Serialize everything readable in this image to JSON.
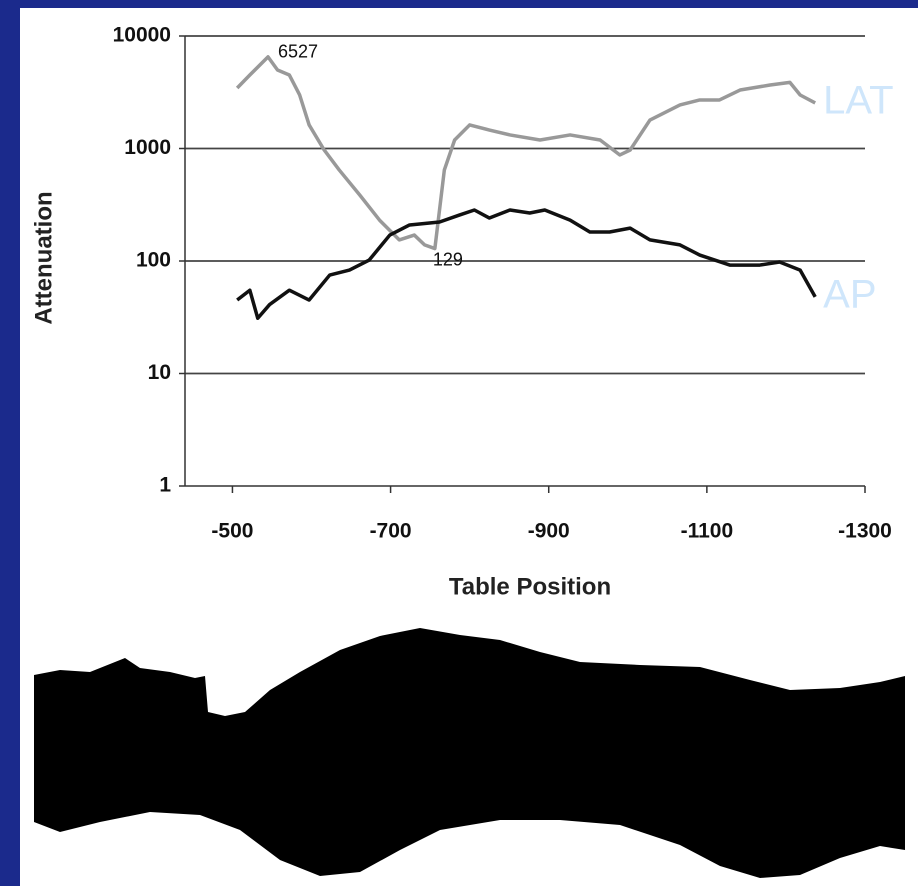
{
  "chart_data": {
    "type": "line",
    "x_label": "Table Position",
    "y_label": "Attenuation",
    "log_y": true,
    "grid": true,
    "xlim": [
      -440,
      -1300
    ],
    "xticks": [
      -500,
      -700,
      -900,
      -1100,
      -1300
    ],
    "ylim": [
      1,
      10000
    ],
    "yticks": [
      1,
      10,
      100,
      1000,
      10000
    ],
    "series": [
      {
        "name": "LAT",
        "color": "#999999",
        "x": [
          -506,
          -522,
          -545,
          -557,
          -572,
          -585,
          -597,
          -616,
          -635,
          -661,
          -686,
          -711,
          -730,
          -743,
          -756,
          -768,
          -781,
          -800,
          -825,
          -851,
          -889,
          -927,
          -965,
          -990,
          -1003,
          -1028,
          -1066,
          -1091,
          -1116,
          -1142,
          -1180,
          -1205,
          -1218,
          -1237
        ],
        "values": [
          3450,
          4500,
          6527,
          4990,
          4500,
          2990,
          1620,
          970,
          645,
          386,
          231,
          154,
          170,
          139,
          129,
          645,
          1190,
          1620,
          1460,
          1320,
          1190,
          1320,
          1190,
          876,
          970,
          1790,
          2440,
          2700,
          2700,
          3310,
          3670,
          3870,
          2990,
          2540
        ]
      },
      {
        "name": "AP",
        "color": "#111111",
        "x": [
          -506,
          -522,
          -532,
          -547,
          -572,
          -597,
          -623,
          -648,
          -673,
          -699,
          -724,
          -762,
          -787,
          -806,
          -825,
          -851,
          -876,
          -895,
          -927,
          -952,
          -977,
          -1003,
          -1028,
          -1066,
          -1091,
          -1129,
          -1167,
          -1192,
          -1218,
          -1237
        ],
        "values": [
          45,
          55,
          31,
          41,
          55,
          45,
          75,
          83,
          102,
          170,
          209,
          222,
          256,
          284,
          241,
          284,
          267,
          284,
          231,
          181,
          181,
          196,
          154,
          139,
          113,
          92,
          92,
          98,
          83,
          48
        ]
      }
    ]
  }
}
